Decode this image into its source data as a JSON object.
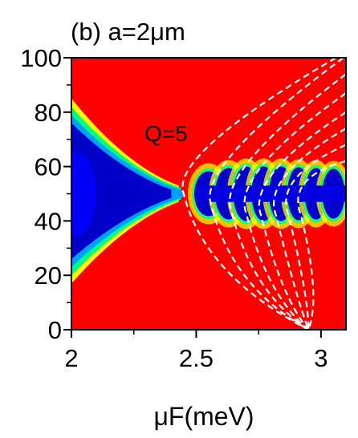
{
  "chart_data": {
    "type": "heatmap",
    "panel_label": "(b) a=2μm",
    "annotation": "Q=5",
    "xlabel": "μF(meV)",
    "xlim": [
      2.0,
      3.1
    ],
    "ylim": [
      0,
      100
    ],
    "x_ticks": [
      {
        "value": 2.0,
        "label": "2"
      },
      {
        "value": 2.5,
        "label": "2.5"
      },
      {
        "value": 3.0,
        "label": "3"
      }
    ],
    "y_ticks": [
      {
        "value": 0,
        "label": "0"
      },
      {
        "value": 20,
        "label": "20"
      },
      {
        "value": 40,
        "label": "40"
      },
      {
        "value": 60,
        "label": "60"
      },
      {
        "value": 80,
        "label": "80"
      },
      {
        "value": 100,
        "label": "100"
      }
    ],
    "colormap": [
      "#0000c8",
      "#0000ff",
      "#00a0ff",
      "#00ff80",
      "#ffff00",
      "#ff8000",
      "#ff0000"
    ],
    "background_color": "#ff0000",
    "overlay_curves": {
      "style": "white dashed",
      "vertex": [
        2.95,
        0
      ],
      "curves": [
        {
          "top": [
            3.06,
            100
          ],
          "outer": [
            2.45,
            50
          ]
        },
        {
          "top": [
            3.09,
            100
          ],
          "outer": [
            2.56,
            46
          ]
        },
        {
          "top": [
            3.1,
            94
          ],
          "outer": [
            2.64,
            44
          ]
        },
        {
          "top": [
            3.1,
            87
          ],
          "outer": [
            2.7,
            43
          ]
        },
        {
          "top": [
            3.1,
            80
          ],
          "outer": [
            2.76,
            42
          ]
        },
        {
          "top": [
            3.1,
            74
          ],
          "outer": [
            2.82,
            42
          ]
        },
        {
          "top": [
            3.1,
            68
          ],
          "outer": [
            2.87,
            42
          ]
        },
        {
          "top": [
            3.1,
            62
          ],
          "outer": [
            2.92,
            42
          ]
        }
      ]
    }
  }
}
